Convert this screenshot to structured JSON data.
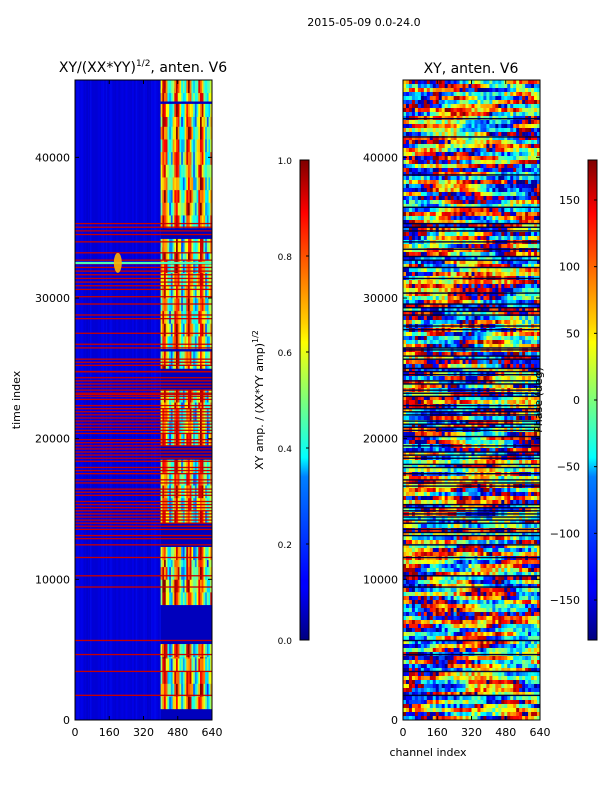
{
  "figure": {
    "suptitle": "2015-05-09 0.0-24.0"
  },
  "chart_data": [
    {
      "type": "heatmap",
      "title": "XY/(XX*YY)",
      "title_exponent": "1/2",
      "title_suffix": ", anten. V6",
      "xlabel": "",
      "ylabel": "time index",
      "xlim": [
        0,
        640
      ],
      "ylim": [
        0,
        45500
      ],
      "xticks": [
        0,
        160,
        320,
        480,
        640
      ],
      "yticks": [
        0,
        10000,
        20000,
        30000,
        40000
      ],
      "xtick_labels": [
        "0",
        "160",
        "320",
        "480",
        "640"
      ],
      "ytick_labels": [
        "0",
        "10000",
        "20000",
        "30000",
        "40000"
      ],
      "colormap": "jet",
      "colorbar": {
        "label": "XY amp. / (XX*YY amp)",
        "label_exponent": "1/2",
        "range": [
          0.0,
          1.0
        ],
        "ticks": [
          0.0,
          0.2,
          0.4,
          0.6,
          0.8,
          1.0
        ],
        "tick_labels": [
          "0.0",
          "0.2",
          "0.4",
          "0.6",
          "0.8",
          "1.0"
        ]
      }
    },
    {
      "type": "heatmap",
      "title": "XY, anten. V6",
      "xlabel": "channel index",
      "ylabel": "",
      "xlim": [
        0,
        640
      ],
      "ylim": [
        0,
        45500
      ],
      "xticks": [
        0,
        160,
        320,
        480,
        640
      ],
      "yticks": [
        0,
        10000,
        20000,
        30000,
        40000
      ],
      "xtick_labels": [
        "0",
        "160",
        "320",
        "480",
        "640"
      ],
      "ytick_labels": [
        "0",
        "10000",
        "20000",
        "30000",
        "40000"
      ],
      "colormap": "jet",
      "colorbar": {
        "label": "Phase (deg)",
        "range": [
          -180,
          180
        ],
        "ticks": [
          -150,
          -100,
          -50,
          0,
          50,
          100,
          150
        ],
        "tick_labels": [
          "−150",
          "−100",
          "−50",
          "0",
          "50",
          "100",
          "150"
        ]
      }
    }
  ]
}
